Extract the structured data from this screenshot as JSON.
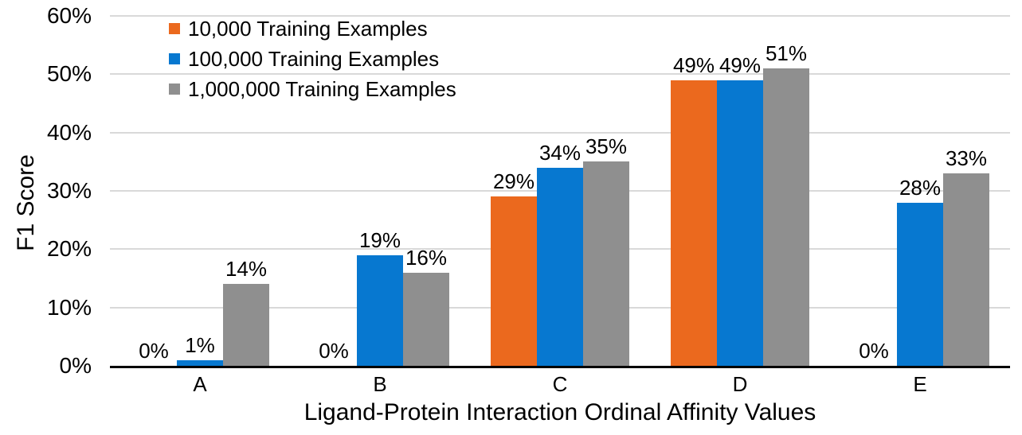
{
  "chart_data": {
    "type": "bar",
    "title": "",
    "xlabel": "Ligand-Protein Interaction Ordinal Affinity Values",
    "ylabel": "F1 Score",
    "categories": [
      "A",
      "B",
      "C",
      "D",
      "E"
    ],
    "series": [
      {
        "name": "10,000 Training Examples",
        "color": "#EB691E",
        "values": [
          0,
          0,
          29,
          49,
          0
        ],
        "labels": [
          "0%",
          "0%",
          "29%",
          "49%",
          "0%"
        ]
      },
      {
        "name": "100,000 Training Examples",
        "color": "#0778D0",
        "values": [
          1,
          19,
          34,
          49,
          28
        ],
        "labels": [
          "1%",
          "19%",
          "34%",
          "49%",
          "28%"
        ]
      },
      {
        "name": "1,000,000 Training Examples",
        "color": "#8F8F8F",
        "values": [
          14,
          16,
          35,
          51,
          33
        ],
        "labels": [
          "14%",
          "16%",
          "35%",
          "51%",
          "33%"
        ]
      }
    ],
    "y_ticks": [
      "0%",
      "10%",
      "20%",
      "30%",
      "40%",
      "50%",
      "60%"
    ],
    "ylim": [
      0,
      60
    ],
    "grid": true,
    "legend_position": "top-left-inside",
    "gridline_color": "#D9D9D9",
    "axis_line_color": "#000000",
    "text_color": "#000000",
    "background": "#FFFFFF"
  }
}
